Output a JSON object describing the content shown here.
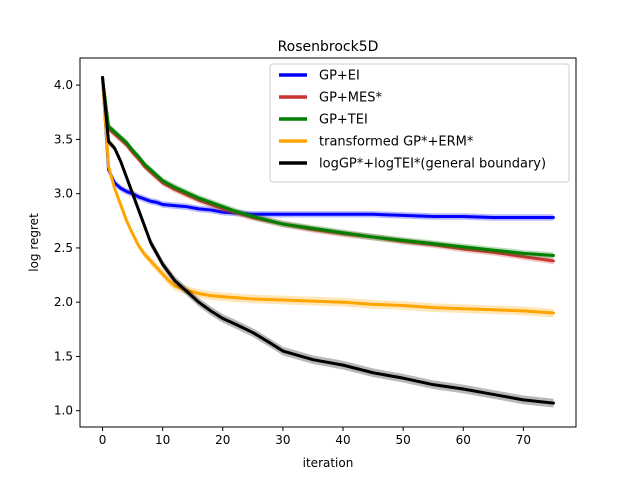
{
  "chart_data": {
    "type": "line",
    "title": "Rosenbrock5D",
    "xlabel": "iteration",
    "ylabel": "log regret",
    "xlim": [
      -3.75,
      78.75
    ],
    "ylim": [
      0.85,
      4.25
    ],
    "xticks": [
      0,
      10,
      20,
      30,
      40,
      50,
      60,
      70
    ],
    "yticks": [
      1.0,
      1.5,
      2.0,
      2.5,
      3.0,
      3.5,
      4.0
    ],
    "xtick_labels": [
      "0",
      "10",
      "20",
      "30",
      "40",
      "50",
      "60",
      "70"
    ],
    "ytick_labels": [
      "1.0",
      "1.5",
      "2.0",
      "2.5",
      "3.0",
      "3.5",
      "4.0"
    ],
    "grid": false,
    "legend_position": "top-right",
    "series": [
      {
        "name": "GP+EI",
        "color": "#0000ff",
        "x": [
          0,
          1,
          2,
          3,
          4,
          5,
          6,
          7,
          8,
          9,
          10,
          12,
          14,
          16,
          18,
          20,
          25,
          30,
          35,
          40,
          45,
          50,
          55,
          60,
          65,
          70,
          75
        ],
        "y": [
          4.07,
          3.22,
          3.1,
          3.05,
          3.02,
          3.0,
          2.97,
          2.95,
          2.93,
          2.92,
          2.9,
          2.89,
          2.88,
          2.86,
          2.85,
          2.83,
          2.81,
          2.81,
          2.81,
          2.81,
          2.81,
          2.8,
          2.79,
          2.79,
          2.78,
          2.78,
          2.78
        ],
        "band": [
          0.02,
          0.03,
          0.03,
          0.03,
          0.03,
          0.03,
          0.03,
          0.03,
          0.03,
          0.03,
          0.03,
          0.03,
          0.03,
          0.03,
          0.03,
          0.03,
          0.03,
          0.03,
          0.03,
          0.03,
          0.03,
          0.03,
          0.03,
          0.03,
          0.03,
          0.03,
          0.03
        ]
      },
      {
        "name": "GP+MES*",
        "color": "#cc3333",
        "x": [
          0,
          1,
          2,
          3,
          4,
          5,
          6,
          7,
          8,
          10,
          12,
          14,
          16,
          18,
          20,
          22,
          25,
          30,
          35,
          40,
          45,
          50,
          55,
          60,
          65,
          70,
          75
        ],
        "y": [
          4.06,
          3.6,
          3.55,
          3.5,
          3.45,
          3.38,
          3.32,
          3.25,
          3.2,
          3.1,
          3.04,
          2.99,
          2.94,
          2.9,
          2.86,
          2.83,
          2.78,
          2.72,
          2.67,
          2.63,
          2.6,
          2.56,
          2.53,
          2.49,
          2.46,
          2.42,
          2.38
        ],
        "band": [
          0.02,
          0.03,
          0.03,
          0.03,
          0.03,
          0.03,
          0.03,
          0.03,
          0.03,
          0.03,
          0.03,
          0.03,
          0.03,
          0.03,
          0.03,
          0.03,
          0.03,
          0.03,
          0.03,
          0.03,
          0.03,
          0.03,
          0.03,
          0.03,
          0.03,
          0.03,
          0.03
        ]
      },
      {
        "name": "GP+TEI",
        "color": "#008000",
        "x": [
          0,
          1,
          2,
          3,
          4,
          5,
          6,
          7,
          8,
          10,
          12,
          14,
          16,
          18,
          20,
          22,
          25,
          30,
          35,
          40,
          45,
          50,
          55,
          60,
          65,
          70,
          75
        ],
        "y": [
          4.06,
          3.62,
          3.57,
          3.52,
          3.47,
          3.4,
          3.34,
          3.27,
          3.22,
          3.12,
          3.06,
          3.01,
          2.96,
          2.92,
          2.88,
          2.84,
          2.79,
          2.72,
          2.68,
          2.64,
          2.6,
          2.57,
          2.54,
          2.51,
          2.48,
          2.45,
          2.43
        ],
        "band": [
          0.02,
          0.03,
          0.03,
          0.03,
          0.03,
          0.03,
          0.03,
          0.03,
          0.03,
          0.03,
          0.03,
          0.03,
          0.03,
          0.03,
          0.03,
          0.03,
          0.03,
          0.03,
          0.03,
          0.03,
          0.03,
          0.03,
          0.03,
          0.03,
          0.03,
          0.03,
          0.03
        ]
      },
      {
        "name": "transformed GP*+ERM*",
        "color": "#ffa500",
        "x": [
          0,
          1,
          2,
          3,
          4,
          5,
          6,
          7,
          8,
          9,
          10,
          11,
          12,
          14,
          16,
          18,
          20,
          25,
          30,
          35,
          40,
          45,
          50,
          55,
          60,
          65,
          70,
          75
        ],
        "y": [
          4.06,
          3.25,
          3.05,
          2.9,
          2.75,
          2.63,
          2.52,
          2.44,
          2.38,
          2.32,
          2.26,
          2.2,
          2.15,
          2.11,
          2.08,
          2.06,
          2.05,
          2.03,
          2.02,
          2.01,
          2.0,
          1.98,
          1.97,
          1.95,
          1.94,
          1.93,
          1.92,
          1.9
        ],
        "band": [
          0.02,
          0.03,
          0.03,
          0.03,
          0.03,
          0.03,
          0.03,
          0.03,
          0.04,
          0.04,
          0.04,
          0.04,
          0.04,
          0.04,
          0.04,
          0.04,
          0.04,
          0.04,
          0.04,
          0.04,
          0.04,
          0.04,
          0.04,
          0.04,
          0.04,
          0.04,
          0.04,
          0.04
        ]
      },
      {
        "name": "logGP*+logTEI*(general boundary)",
        "color": "#000000",
        "x": [
          0,
          1,
          2,
          3,
          4,
          5,
          6,
          7,
          8,
          10,
          12,
          14,
          16,
          18,
          20,
          22,
          25,
          28,
          30,
          35,
          40,
          45,
          50,
          55,
          60,
          65,
          70,
          75
        ],
        "y": [
          4.07,
          3.48,
          3.42,
          3.3,
          3.15,
          3.0,
          2.85,
          2.7,
          2.55,
          2.35,
          2.2,
          2.1,
          2.0,
          1.92,
          1.85,
          1.8,
          1.72,
          1.62,
          1.55,
          1.47,
          1.42,
          1.35,
          1.3,
          1.24,
          1.2,
          1.15,
          1.1,
          1.07
        ],
        "band": [
          0.02,
          0.03,
          0.03,
          0.03,
          0.04,
          0.04,
          0.04,
          0.04,
          0.04,
          0.04,
          0.04,
          0.04,
          0.04,
          0.04,
          0.04,
          0.04,
          0.04,
          0.04,
          0.04,
          0.04,
          0.04,
          0.04,
          0.04,
          0.04,
          0.04,
          0.04,
          0.04,
          0.04
        ]
      }
    ]
  }
}
